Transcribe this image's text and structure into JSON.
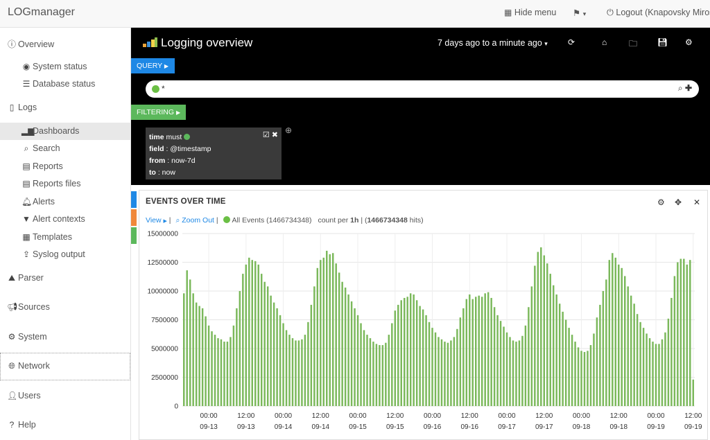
{
  "app": {
    "brand": "LOGmanager",
    "hide_menu": "Hide menu",
    "logout": "Logout (Knapovsky Miros"
  },
  "sidebar": {
    "items": [
      {
        "label": "Overview",
        "icon": "info-circle-icon"
      },
      {
        "label": "System status",
        "icon": "eye-icon"
      },
      {
        "label": "Database status",
        "icon": "database-icon"
      },
      {
        "label": "Logs",
        "icon": "file-icon"
      },
      {
        "label": "Dashboards",
        "icon": "bar-chart-icon",
        "active": true
      },
      {
        "label": "Search",
        "icon": "search-icon"
      },
      {
        "label": "Reports",
        "icon": "list-alt-icon"
      },
      {
        "label": "Reports files",
        "icon": "list-alt-icon"
      },
      {
        "label": "Alerts",
        "icon": "bell-icon"
      },
      {
        "label": "Alert contexts",
        "icon": "filter-icon"
      },
      {
        "label": "Templates",
        "icon": "table-icon"
      },
      {
        "label": "Syslog output",
        "icon": "upload-icon"
      },
      {
        "label": "Parser",
        "icon": "road-icon"
      },
      {
        "label": "Sources",
        "icon": "bullhorn-icon"
      },
      {
        "label": "System",
        "icon": "cog-icon"
      },
      {
        "label": "Network",
        "icon": "globe-icon"
      },
      {
        "label": "Users",
        "icon": "user-icon"
      },
      {
        "label": "Help",
        "icon": "question-icon"
      }
    ]
  },
  "dashboard": {
    "title": "Logging overview",
    "timerange": "7 days ago to a minute ago",
    "query_label": "QUERY",
    "query_value": "*",
    "filtering_label": "FILTERING",
    "filter": {
      "time_key": "time",
      "time_val": "must",
      "field_key": "field",
      "field_val": ": @timestamp",
      "from_key": "from",
      "from_val": ": now-7d",
      "to_key": "to",
      "to_val": ": now"
    }
  },
  "panel": {
    "title": "EVENTS OVER TIME",
    "view_label": "View",
    "zoom_out": "Zoom Out",
    "series_label": "All Events (1466734348)",
    "count_prefix": "count per",
    "interval": "1h",
    "hits_total": "1466734348",
    "hits_suffix": "hits)",
    "series_color": "#7ab85a"
  },
  "chart_data": {
    "type": "bar",
    "title": "EVENTS OVER TIME",
    "ylim": [
      0,
      15000000
    ],
    "yticks": [
      "15000000",
      "12500000",
      "10000000",
      "7500000",
      "5000000",
      "2500000",
      "0"
    ],
    "xticks": [
      [
        "00:00",
        "09-13"
      ],
      [
        "12:00",
        "09-13"
      ],
      [
        "00:00",
        "09-14"
      ],
      [
        "12:00",
        "09-14"
      ],
      [
        "00:00",
        "09-15"
      ],
      [
        "12:00",
        "09-15"
      ],
      [
        "00:00",
        "09-16"
      ],
      [
        "12:00",
        "09-16"
      ],
      [
        "00:00",
        "09-17"
      ],
      [
        "12:00",
        "09-17"
      ],
      [
        "00:00",
        "09-18"
      ],
      [
        "12:00",
        "09-18"
      ],
      [
        "00:00",
        "09-19"
      ],
      [
        "12:00",
        "09-19"
      ]
    ],
    "grid": true,
    "series": [
      {
        "values": [
          9800000,
          11800000,
          11000000,
          9800000,
          9000000,
          8700000,
          8500000,
          7800000,
          7000000,
          6500000,
          6200000,
          5900000,
          5800000,
          5600000,
          5600000,
          6000000,
          7000000,
          8500000,
          10000000,
          11500000,
          12300000,
          12900000,
          12700000,
          12600000,
          12300000,
          11500000,
          10800000,
          10400000,
          9600000,
          9000000,
          8500000,
          7900000,
          7200000,
          6600000,
          6200000,
          5900000,
          5700000,
          5700000,
          5800000,
          6200000,
          7300000,
          8800000,
          10400000,
          12000000,
          12700000,
          12900000,
          13500000,
          13200000,
          13300000,
          12400000,
          11600000,
          10800000,
          10300000,
          9700000,
          9100000,
          8500000,
          7900000,
          7200000,
          6600000,
          6200000,
          5900000,
          5600000,
          5400000,
          5300000,
          5300000,
          5500000,
          6200000,
          7200000,
          8300000,
          8800000,
          9200000,
          9400000,
          9500000,
          9800000,
          9700000,
          9200000,
          8700000,
          8400000,
          7900000,
          7300000,
          6800000,
          6400000,
          6000000,
          5800000,
          5600000,
          5500000,
          5700000,
          6000000,
          6700000,
          7700000,
          8500000,
          9300000,
          9700000,
          9300000,
          9500000,
          9600000,
          9500000,
          9800000,
          9900000,
          9400000,
          8600000,
          7900000,
          7400000,
          6900000,
          6400000,
          6000000,
          5700000,
          5600000,
          5700000,
          6100000,
          7000000,
          8600000,
          10400000,
          12200000,
          13400000,
          13800000,
          13100000,
          12400000,
          11500000,
          10500000,
          9700000,
          8900000,
          8200000,
          7500000,
          6800000,
          6200000,
          5600000,
          5100000,
          4800000,
          4700000,
          4800000,
          5300000,
          6300000,
          7700000,
          8800000,
          10000000,
          11000000,
          12700000,
          13300000,
          12900000,
          12300000,
          12000000,
          11300000,
          10400000,
          9600000,
          8900000,
          8000000,
          7300000,
          6800000,
          6300000,
          5900000,
          5600000,
          5400000,
          5400000,
          5800000,
          6400000,
          7600000,
          9400000,
          11300000,
          12500000,
          12800000,
          12800000,
          12300000,
          12700000,
          2300000
        ]
      }
    ]
  }
}
